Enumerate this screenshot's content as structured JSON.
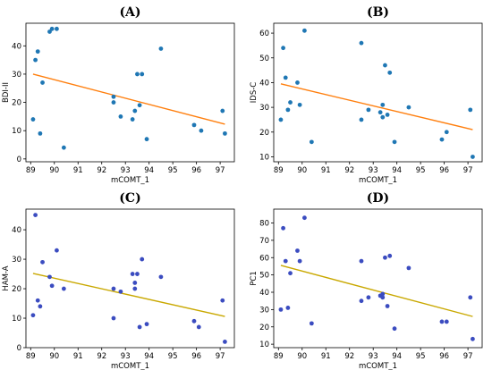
{
  "chart_data": [
    {
      "type": "scatter",
      "panel_label": "(A)",
      "xlabel": "mCOMT_1",
      "ylabel": "BDI-II",
      "xlim": [
        88.8,
        97.6
      ],
      "ylim": [
        -1,
        48
      ],
      "xticks": [
        89,
        90,
        91,
        92,
        93,
        94,
        95,
        96,
        97
      ],
      "yticks": [
        0,
        10,
        20,
        30,
        40
      ],
      "point_color": "#1f77b4",
      "trend_color": "#ff7f0e",
      "points": [
        {
          "x": 89.1,
          "y": 14
        },
        {
          "x": 89.2,
          "y": 35
        },
        {
          "x": 89.3,
          "y": 38
        },
        {
          "x": 89.4,
          "y": 9
        },
        {
          "x": 89.5,
          "y": 27
        },
        {
          "x": 89.8,
          "y": 45
        },
        {
          "x": 89.9,
          "y": 46
        },
        {
          "x": 90.1,
          "y": 46
        },
        {
          "x": 90.4,
          "y": 4
        },
        {
          "x": 92.5,
          "y": 22
        },
        {
          "x": 92.5,
          "y": 20
        },
        {
          "x": 92.8,
          "y": 15
        },
        {
          "x": 93.3,
          "y": 14
        },
        {
          "x": 93.4,
          "y": 17
        },
        {
          "x": 93.5,
          "y": 30
        },
        {
          "x": 93.6,
          "y": 19
        },
        {
          "x": 93.7,
          "y": 30
        },
        {
          "x": 93.9,
          "y": 7
        },
        {
          "x": 94.5,
          "y": 39
        },
        {
          "x": 95.9,
          "y": 12
        },
        {
          "x": 96.2,
          "y": 10
        },
        {
          "x": 97.1,
          "y": 17
        },
        {
          "x": 97.2,
          "y": 9
        }
      ],
      "trend": {
        "x": [
          89.1,
          97.2
        ],
        "y": [
          30,
          12.3
        ]
      }
    },
    {
      "type": "scatter",
      "panel_label": "(B)",
      "xlabel": "mCOMT_1",
      "ylabel": "IDS-C",
      "xlim": [
        88.8,
        97.6
      ],
      "ylim": [
        8,
        64
      ],
      "xticks": [
        89,
        90,
        91,
        92,
        93,
        94,
        95,
        96,
        97
      ],
      "yticks": [
        10,
        20,
        30,
        40,
        50,
        60
      ],
      "point_color": "#1f77b4",
      "trend_color": "#ff7f0e",
      "points": [
        {
          "x": 89.1,
          "y": 25
        },
        {
          "x": 89.2,
          "y": 54
        },
        {
          "x": 89.3,
          "y": 42
        },
        {
          "x": 89.4,
          "y": 29
        },
        {
          "x": 89.5,
          "y": 32
        },
        {
          "x": 89.8,
          "y": 40
        },
        {
          "x": 89.9,
          "y": 31
        },
        {
          "x": 90.1,
          "y": 61
        },
        {
          "x": 90.4,
          "y": 16
        },
        {
          "x": 92.5,
          "y": 56
        },
        {
          "x": 92.5,
          "y": 25
        },
        {
          "x": 92.8,
          "y": 29
        },
        {
          "x": 93.3,
          "y": 28
        },
        {
          "x": 93.4,
          "y": 31
        },
        {
          "x": 93.4,
          "y": 26
        },
        {
          "x": 93.5,
          "y": 47
        },
        {
          "x": 93.6,
          "y": 27
        },
        {
          "x": 93.7,
          "y": 44
        },
        {
          "x": 93.9,
          "y": 16
        },
        {
          "x": 94.5,
          "y": 30
        },
        {
          "x": 95.9,
          "y": 17
        },
        {
          "x": 96.1,
          "y": 20
        },
        {
          "x": 97.1,
          "y": 29
        },
        {
          "x": 97.2,
          "y": 10
        }
      ],
      "trend": {
        "x": [
          89.1,
          97.2
        ],
        "y": [
          39.5,
          21
        ]
      }
    },
    {
      "type": "scatter",
      "panel_label": "(C)",
      "xlabel": "mCOMT_1",
      "ylabel": "HAM-A",
      "xlim": [
        88.8,
        97.6
      ],
      "ylim": [
        0,
        47
      ],
      "xticks": [
        89,
        90,
        91,
        92,
        93,
        94,
        95,
        96,
        97
      ],
      "yticks": [
        0,
        10,
        20,
        30,
        40
      ],
      "point_color": "#3b4cc0",
      "trend_color": "#c9a800",
      "points": [
        {
          "x": 89.1,
          "y": 11
        },
        {
          "x": 89.2,
          "y": 45
        },
        {
          "x": 89.3,
          "y": 16
        },
        {
          "x": 89.4,
          "y": 14
        },
        {
          "x": 89.5,
          "y": 29
        },
        {
          "x": 89.8,
          "y": 24
        },
        {
          "x": 89.9,
          "y": 21
        },
        {
          "x": 90.1,
          "y": 33
        },
        {
          "x": 90.4,
          "y": 20
        },
        {
          "x": 92.5,
          "y": 20
        },
        {
          "x": 92.5,
          "y": 10
        },
        {
          "x": 92.8,
          "y": 19
        },
        {
          "x": 93.3,
          "y": 25
        },
        {
          "x": 93.4,
          "y": 22
        },
        {
          "x": 93.4,
          "y": 20
        },
        {
          "x": 93.5,
          "y": 25
        },
        {
          "x": 93.6,
          "y": 7
        },
        {
          "x": 93.7,
          "y": 30
        },
        {
          "x": 93.9,
          "y": 8
        },
        {
          "x": 94.5,
          "y": 24
        },
        {
          "x": 95.9,
          "y": 9
        },
        {
          "x": 96.1,
          "y": 7
        },
        {
          "x": 97.1,
          "y": 16
        },
        {
          "x": 97.2,
          "y": 2
        }
      ],
      "trend": {
        "x": [
          89.1,
          97.2
        ],
        "y": [
          25.2,
          10.6
        ]
      }
    },
    {
      "type": "scatter",
      "panel_label": "(D)",
      "xlabel": "mCOMT_1",
      "ylabel": "PC1",
      "xlim": [
        88.8,
        97.6
      ],
      "ylim": [
        8,
        88
      ],
      "xticks": [
        89,
        90,
        91,
        92,
        93,
        94,
        95,
        96,
        97
      ],
      "yticks": [
        10,
        20,
        30,
        40,
        50,
        60,
        70,
        80
      ],
      "point_color": "#3b4cc0",
      "trend_color": "#c9a800",
      "points": [
        {
          "x": 89.1,
          "y": 30
        },
        {
          "x": 89.2,
          "y": 77
        },
        {
          "x": 89.3,
          "y": 58
        },
        {
          "x": 89.4,
          "y": 31
        },
        {
          "x": 89.5,
          "y": 51
        },
        {
          "x": 89.8,
          "y": 64
        },
        {
          "x": 89.9,
          "y": 58
        },
        {
          "x": 90.1,
          "y": 83
        },
        {
          "x": 90.4,
          "y": 22
        },
        {
          "x": 92.5,
          "y": 58
        },
        {
          "x": 92.5,
          "y": 35
        },
        {
          "x": 92.8,
          "y": 37
        },
        {
          "x": 93.3,
          "y": 38
        },
        {
          "x": 93.4,
          "y": 39
        },
        {
          "x": 93.4,
          "y": 37
        },
        {
          "x": 93.5,
          "y": 60
        },
        {
          "x": 93.6,
          "y": 32
        },
        {
          "x": 93.7,
          "y": 61
        },
        {
          "x": 93.9,
          "y": 19
        },
        {
          "x": 94.5,
          "y": 54
        },
        {
          "x": 95.9,
          "y": 23
        },
        {
          "x": 96.1,
          "y": 23
        },
        {
          "x": 97.1,
          "y": 37
        },
        {
          "x": 97.2,
          "y": 13
        }
      ],
      "trend": {
        "x": [
          89.1,
          97.2
        ],
        "y": [
          55.5,
          26
        ]
      }
    }
  ]
}
